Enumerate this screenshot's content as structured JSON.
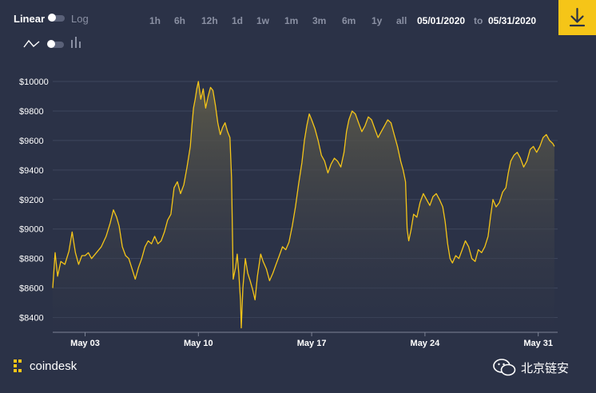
{
  "toolbar": {
    "scale_linear": "Linear",
    "scale_log": "Log",
    "ranges": [
      "1h",
      "6h",
      "12h",
      "1d",
      "1w",
      "1m",
      "3m",
      "6m",
      "1y",
      "all"
    ],
    "date_from": "05/01/2020",
    "date_separator": "to",
    "date_to": "05/31/2020",
    "download_icon": "download-icon",
    "chart_type_icons": [
      "line-chart-icon",
      "bar-chart-icon"
    ]
  },
  "footer": {
    "brand": "coindesk",
    "brand_icon": "coindesk-logo-icon",
    "watermark": "北京链安",
    "watermark_icon": "wechat-icon"
  },
  "colors": {
    "background": "#2b3247",
    "line": "#f5c518",
    "accent": "#f5c518",
    "muted_text": "#8a90a3",
    "grid": "#3e465c"
  },
  "chart_data": {
    "type": "area",
    "title": "",
    "xlabel": "",
    "ylabel": "",
    "currency_prefix": "$",
    "ylim": [
      8300,
      10130
    ],
    "yticks": [
      8400,
      8600,
      8800,
      9000,
      9200,
      9400,
      9600,
      9800,
      10000
    ],
    "ytick_labels": [
      "$8400",
      "$8600",
      "$8800",
      "$9000",
      "$9200",
      "$9400",
      "$9600",
      "$9800",
      "$10000"
    ],
    "xlim": [
      1.0,
      32.2
    ],
    "xticks": [
      3,
      10,
      17,
      24,
      31
    ],
    "xtick_labels": [
      "May 03",
      "May 10",
      "May 17",
      "May 24",
      "May 31"
    ],
    "grid": true,
    "series": [
      {
        "values": [
          [
            1.0,
            8600
          ],
          [
            1.15,
            8840
          ],
          [
            1.3,
            8680
          ],
          [
            1.5,
            8780
          ],
          [
            1.75,
            8760
          ],
          [
            2.0,
            8850
          ],
          [
            2.2,
            8980
          ],
          [
            2.4,
            8840
          ],
          [
            2.6,
            8760
          ],
          [
            2.8,
            8820
          ],
          [
            3.0,
            8820
          ],
          [
            3.2,
            8840
          ],
          [
            3.4,
            8800
          ],
          [
            3.7,
            8840
          ],
          [
            4.0,
            8880
          ],
          [
            4.3,
            8950
          ],
          [
            4.55,
            9040
          ],
          [
            4.75,
            9130
          ],
          [
            4.95,
            9080
          ],
          [
            5.1,
            9020
          ],
          [
            5.3,
            8880
          ],
          [
            5.5,
            8820
          ],
          [
            5.7,
            8800
          ],
          [
            5.9,
            8730
          ],
          [
            6.1,
            8660
          ],
          [
            6.3,
            8740
          ],
          [
            6.5,
            8800
          ],
          [
            6.7,
            8880
          ],
          [
            6.9,
            8920
          ],
          [
            7.1,
            8900
          ],
          [
            7.3,
            8950
          ],
          [
            7.5,
            8900
          ],
          [
            7.7,
            8920
          ],
          [
            7.9,
            8980
          ],
          [
            8.1,
            9060
          ],
          [
            8.3,
            9100
          ],
          [
            8.5,
            9280
          ],
          [
            8.7,
            9320
          ],
          [
            8.9,
            9240
          ],
          [
            9.1,
            9300
          ],
          [
            9.3,
            9420
          ],
          [
            9.5,
            9560
          ],
          [
            9.6,
            9700
          ],
          [
            9.7,
            9820
          ],
          [
            9.8,
            9880
          ],
          [
            9.9,
            9950
          ],
          [
            10.0,
            10000
          ],
          [
            10.15,
            9880
          ],
          [
            10.3,
            9950
          ],
          [
            10.45,
            9820
          ],
          [
            10.6,
            9900
          ],
          [
            10.75,
            9960
          ],
          [
            10.9,
            9940
          ],
          [
            11.05,
            9840
          ],
          [
            11.2,
            9720
          ],
          [
            11.35,
            9640
          ],
          [
            11.5,
            9690
          ],
          [
            11.65,
            9720
          ],
          [
            11.8,
            9660
          ],
          [
            11.95,
            9620
          ],
          [
            12.05,
            9350
          ],
          [
            12.15,
            8660
          ],
          [
            12.3,
            8740
          ],
          [
            12.4,
            8830
          ],
          [
            12.5,
            8700
          ],
          [
            12.6,
            8520
          ],
          [
            12.65,
            8330
          ],
          [
            12.75,
            8600
          ],
          [
            12.9,
            8800
          ],
          [
            13.05,
            8700
          ],
          [
            13.2,
            8650
          ],
          [
            13.35,
            8590
          ],
          [
            13.5,
            8520
          ],
          [
            13.65,
            8680
          ],
          [
            13.85,
            8830
          ],
          [
            14.0,
            8780
          ],
          [
            14.2,
            8730
          ],
          [
            14.4,
            8650
          ],
          [
            14.6,
            8700
          ],
          [
            14.8,
            8760
          ],
          [
            15.0,
            8820
          ],
          [
            15.2,
            8880
          ],
          [
            15.4,
            8860
          ],
          [
            15.6,
            8910
          ],
          [
            15.8,
            9020
          ],
          [
            16.0,
            9150
          ],
          [
            16.2,
            9310
          ],
          [
            16.4,
            9450
          ],
          [
            16.55,
            9600
          ],
          [
            16.7,
            9700
          ],
          [
            16.85,
            9780
          ],
          [
            17.0,
            9740
          ],
          [
            17.2,
            9680
          ],
          [
            17.4,
            9600
          ],
          [
            17.6,
            9500
          ],
          [
            17.8,
            9460
          ],
          [
            18.0,
            9380
          ],
          [
            18.2,
            9440
          ],
          [
            18.4,
            9480
          ],
          [
            18.6,
            9460
          ],
          [
            18.8,
            9420
          ],
          [
            19.0,
            9520
          ],
          [
            19.15,
            9660
          ],
          [
            19.3,
            9740
          ],
          [
            19.5,
            9800
          ],
          [
            19.7,
            9780
          ],
          [
            19.9,
            9720
          ],
          [
            20.1,
            9660
          ],
          [
            20.3,
            9700
          ],
          [
            20.5,
            9760
          ],
          [
            20.7,
            9740
          ],
          [
            20.9,
            9680
          ],
          [
            21.1,
            9620
          ],
          [
            21.3,
            9660
          ],
          [
            21.5,
            9700
          ],
          [
            21.7,
            9740
          ],
          [
            21.9,
            9720
          ],
          [
            22.1,
            9640
          ],
          [
            22.3,
            9560
          ],
          [
            22.5,
            9460
          ],
          [
            22.65,
            9400
          ],
          [
            22.8,
            9320
          ],
          [
            22.9,
            9000
          ],
          [
            23.0,
            8920
          ],
          [
            23.15,
            9000
          ],
          [
            23.3,
            9100
          ],
          [
            23.5,
            9080
          ],
          [
            23.7,
            9180
          ],
          [
            23.9,
            9240
          ],
          [
            24.1,
            9200
          ],
          [
            24.3,
            9160
          ],
          [
            24.5,
            9220
          ],
          [
            24.7,
            9240
          ],
          [
            24.9,
            9200
          ],
          [
            25.1,
            9150
          ],
          [
            25.25,
            9050
          ],
          [
            25.4,
            8900
          ],
          [
            25.55,
            8800
          ],
          [
            25.7,
            8770
          ],
          [
            25.9,
            8820
          ],
          [
            26.1,
            8800
          ],
          [
            26.3,
            8860
          ],
          [
            26.5,
            8920
          ],
          [
            26.7,
            8880
          ],
          [
            26.9,
            8800
          ],
          [
            27.1,
            8780
          ],
          [
            27.3,
            8860
          ],
          [
            27.5,
            8840
          ],
          [
            27.7,
            8880
          ],
          [
            27.9,
            8950
          ],
          [
            28.05,
            9080
          ],
          [
            28.2,
            9200
          ],
          [
            28.4,
            9150
          ],
          [
            28.6,
            9180
          ],
          [
            28.8,
            9250
          ],
          [
            29.0,
            9280
          ],
          [
            29.15,
            9380
          ],
          [
            29.3,
            9460
          ],
          [
            29.5,
            9500
          ],
          [
            29.7,
            9520
          ],
          [
            29.9,
            9480
          ],
          [
            30.1,
            9420
          ],
          [
            30.3,
            9460
          ],
          [
            30.5,
            9540
          ],
          [
            30.7,
            9560
          ],
          [
            30.9,
            9520
          ],
          [
            31.1,
            9560
          ],
          [
            31.3,
            9620
          ],
          [
            31.5,
            9640
          ],
          [
            31.7,
            9600
          ],
          [
            31.9,
            9580
          ],
          [
            32.0,
            9560
          ]
        ]
      }
    ]
  }
}
